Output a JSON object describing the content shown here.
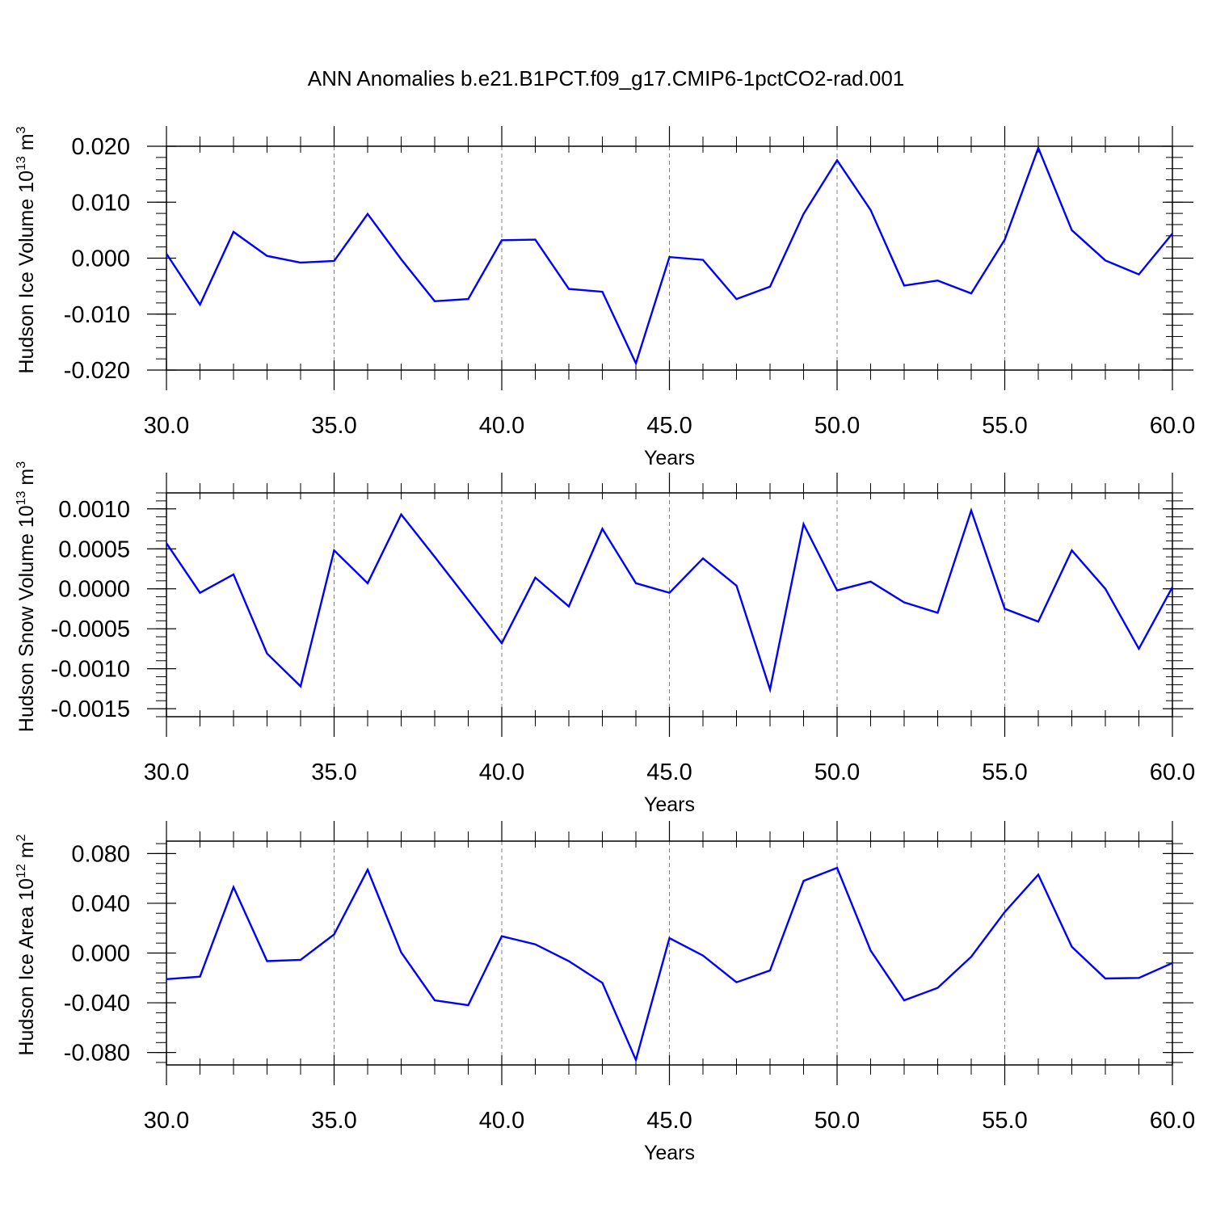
{
  "title": "ANN Anomalies b.e21.B1PCT.f09_g17.CMIP6-1pctCO2-rad.001",
  "colors": {
    "series": "#0000ff",
    "frame": "#000000",
    "grid": "#808080"
  },
  "chart_data": [
    {
      "type": "line",
      "ylabel": "Hudson Ice Volume 10",
      "ylabel_exp": "13",
      "ylabel_unit": "m",
      "ylabel_unit_exp": "3",
      "xlabel": "Years",
      "xlim": [
        30,
        60
      ],
      "ylim": [
        -0.02,
        0.02
      ],
      "xticks": [
        30,
        35,
        40,
        45,
        50,
        55,
        60
      ],
      "xtick_labels": [
        "30.0",
        "35.0",
        "40.0",
        "45.0",
        "50.0",
        "55.0",
        "60.0"
      ],
      "yticks": [
        -0.02,
        -0.01,
        0.0,
        0.01,
        0.02
      ],
      "ytick_labels": [
        "-0.020",
        "-0.010",
        "0.000",
        "0.010",
        "0.020"
      ],
      "x": [
        30,
        31,
        32,
        33,
        34,
        35,
        36,
        37,
        38,
        39,
        40,
        41,
        42,
        43,
        44,
        45,
        46,
        47,
        48,
        49,
        50,
        51,
        52,
        53,
        54,
        55,
        56,
        57,
        58,
        59,
        60
      ],
      "y": [
        0.0008,
        -0.0083,
        0.0047,
        0.0004,
        -0.0008,
        -0.0005,
        0.0079,
        -0.0002,
        -0.0077,
        -0.0073,
        0.0032,
        0.0033,
        -0.0055,
        -0.006,
        -0.0188,
        0.0002,
        -0.0003,
        -0.0073,
        -0.0051,
        0.0079,
        0.0175,
        0.0086,
        -0.0049,
        -0.004,
        -0.0063,
        0.0033,
        0.0197,
        0.005,
        -0.0004,
        -0.0029,
        0.0044
      ]
    },
    {
      "type": "line",
      "ylabel": "Hudson Snow Volume 10",
      "ylabel_exp": "13",
      "ylabel_unit": "m",
      "ylabel_unit_exp": "3",
      "xlabel": "Years",
      "xlim": [
        30,
        60
      ],
      "ylim": [
        -0.0016,
        0.0012
      ],
      "xticks": [
        30,
        35,
        40,
        45,
        50,
        55,
        60
      ],
      "xtick_labels": [
        "30.0",
        "35.0",
        "40.0",
        "45.0",
        "50.0",
        "55.0",
        "60.0"
      ],
      "yticks": [
        -0.0015,
        -0.001,
        -0.0005,
        0.0,
        0.0005,
        0.001
      ],
      "ytick_labels": [
        "-0.0015",
        "-0.0010",
        "-0.0005",
        "0.0000",
        "0.0005",
        "0.0010"
      ],
      "x": [
        30,
        31,
        32,
        33,
        34,
        35,
        36,
        37,
        38,
        39,
        40,
        41,
        42,
        43,
        44,
        45,
        46,
        47,
        48,
        49,
        50,
        51,
        52,
        53,
        54,
        55,
        56,
        57,
        58,
        59,
        60
      ],
      "y": [
        0.00057,
        -5e-05,
        0.00018,
        -0.00081,
        -0.00122,
        0.00048,
        7e-05,
        0.00093,
        0.0004,
        -0.00014,
        -0.00068,
        0.00014,
        -0.00022,
        0.00075,
        7e-05,
        -5e-05,
        0.00038,
        4e-05,
        -0.00126,
        0.00081,
        -2e-05,
        9e-05,
        -0.00017,
        -0.0003,
        0.00098,
        -0.00025,
        -0.00041,
        0.00048,
        0.0,
        -0.00075,
        2e-05
      ]
    },
    {
      "type": "line",
      "ylabel": "Hudson Ice Area 10",
      "ylabel_exp": "12",
      "ylabel_unit": "m",
      "ylabel_unit_exp": "2",
      "xlabel": "Years",
      "xlim": [
        30,
        60
      ],
      "ylim": [
        -0.09,
        0.09
      ],
      "xticks": [
        30,
        35,
        40,
        45,
        50,
        55,
        60
      ],
      "xtick_labels": [
        "30.0",
        "35.0",
        "40.0",
        "45.0",
        "50.0",
        "55.0",
        "60.0"
      ],
      "yticks": [
        -0.08,
        -0.04,
        0.0,
        0.04,
        0.08
      ],
      "ytick_labels": [
        "-0.080",
        "-0.040",
        "0.000",
        "0.040",
        "0.080"
      ],
      "x": [
        30,
        31,
        32,
        33,
        34,
        35,
        36,
        37,
        38,
        39,
        40,
        41,
        42,
        43,
        44,
        45,
        46,
        47,
        48,
        49,
        50,
        51,
        52,
        53,
        54,
        55,
        56,
        57,
        58,
        59,
        60
      ],
      "y": [
        -0.021,
        -0.019,
        0.053,
        -0.0065,
        -0.0055,
        0.015,
        0.067,
        0.0005,
        -0.038,
        -0.042,
        0.0135,
        0.007,
        -0.0065,
        -0.024,
        -0.086,
        0.012,
        -0.002,
        -0.0235,
        -0.014,
        0.058,
        0.0685,
        0.002,
        -0.038,
        -0.028,
        -0.003,
        0.033,
        0.063,
        0.005,
        -0.0205,
        -0.02,
        -0.008
      ]
    }
  ]
}
